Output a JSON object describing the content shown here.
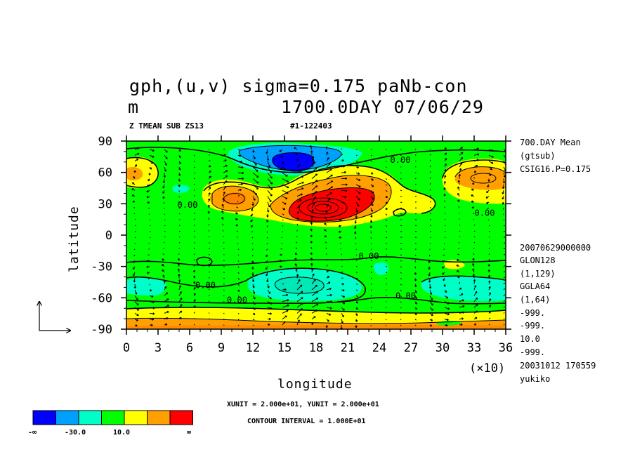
{
  "header": {
    "title_line1": "gph,(u,v) sigma=0.175 paNb-con",
    "title_line2_left": "m",
    "title_line2_right": "1700.0DAY 07/06/29",
    "sub_left": "Z TMEAN SUB ZS13",
    "sub_right": "#1-122403"
  },
  "side_info": {
    "top": [
      "700.DAY Mean",
      "(gtsub)",
      "CSIG16.P=0.175"
    ],
    "bottom": [
      "20070629000000",
      "GLON128",
      "(1,129)",
      "GGLA64",
      "(1,64)",
      "-999.",
      "-999.",
      "10.0",
      "-999.",
      "20031012 170559",
      "yukiko"
    ]
  },
  "footer": {
    "units": "XUNIT = 2.000e+01, YUNIT = 2.000e+01",
    "contour": "CONTOUR INTERVAL = 1.000E+01"
  },
  "colors": {
    "dark_blue": "#0000ff",
    "mid_blue": "#00a0ff",
    "cyan": "#00ffc8",
    "green": "#00ff00",
    "yellow": "#ffff00",
    "orange": "#ffa000",
    "red": "#ff0000"
  },
  "colorbar": {
    "labels": [
      "-∞",
      "-30.0",
      "10.0",
      "∞"
    ]
  },
  "chart_data": {
    "type": "heatmap",
    "xlabel": "longitude",
    "ylabel": "latitude",
    "x_multiplier": "(×10)",
    "xlim": [
      0,
      36
    ],
    "ylim": [
      -90,
      90
    ],
    "x_ticks": [
      "0",
      "3",
      "6",
      "9",
      "12",
      "15",
      "18",
      "21",
      "24",
      "27",
      "30",
      "33",
      "36"
    ],
    "y_ticks": [
      "90",
      "60",
      "30",
      "0",
      "-30",
      "-60",
      "-90"
    ],
    "contour_labels": [
      {
        "text": "0.00",
        "x": 26,
        "y": 72
      },
      {
        "text": "0.00",
        "x": 5.8,
        "y": 29
      },
      {
        "text": "0.00",
        "x": 34,
        "y": 21
      },
      {
        "text": "0.00",
        "x": 23,
        "y": -20
      },
      {
        "text": "0.00",
        "x": 7.5,
        "y": -48
      },
      {
        "text": "0.00",
        "x": 10.5,
        "y": -62
      },
      {
        "text": "0.00",
        "x": 26.5,
        "y": -58
      }
    ],
    "features": [
      {
        "kind": "high",
        "lon": 20,
        "lat": 27,
        "peak": "above 30",
        "note": "strongest anomaly, red core"
      },
      {
        "kind": "high",
        "lon": 11,
        "lat": 38,
        "peak": "10 to 30"
      },
      {
        "kind": "high",
        "lon": 33.5,
        "lat": 57,
        "peak": "10 to 30"
      },
      {
        "kind": "high",
        "lon": 1.5,
        "lat": 62,
        "peak": "10 to 30"
      },
      {
        "kind": "low",
        "lon": 15.5,
        "lat": 70,
        "peak": "below -30",
        "note": "blue core"
      },
      {
        "kind": "low",
        "lon": 15,
        "lat": -48,
        "peak": "-30 to -10"
      },
      {
        "kind": "low",
        "lon": 31,
        "lat": -50,
        "peak": "-30 to -10"
      },
      {
        "kind": "low",
        "lon": 2.5,
        "lat": -50,
        "peak": "-30 to -10"
      },
      {
        "kind": "high",
        "lon": 18,
        "lat": -85,
        "peak": "10 to 30",
        "note": "south polar band"
      }
    ],
    "legend": {
      "bins": [
        "<-30",
        "-30 to -20",
        "-20 to -10",
        "-10 to 10",
        "10 to 20",
        "20 to 30",
        ">30"
      ],
      "placement": "bottom-left"
    },
    "reference_vector": {
      "x_unit": 20,
      "y_unit": 20
    }
  }
}
